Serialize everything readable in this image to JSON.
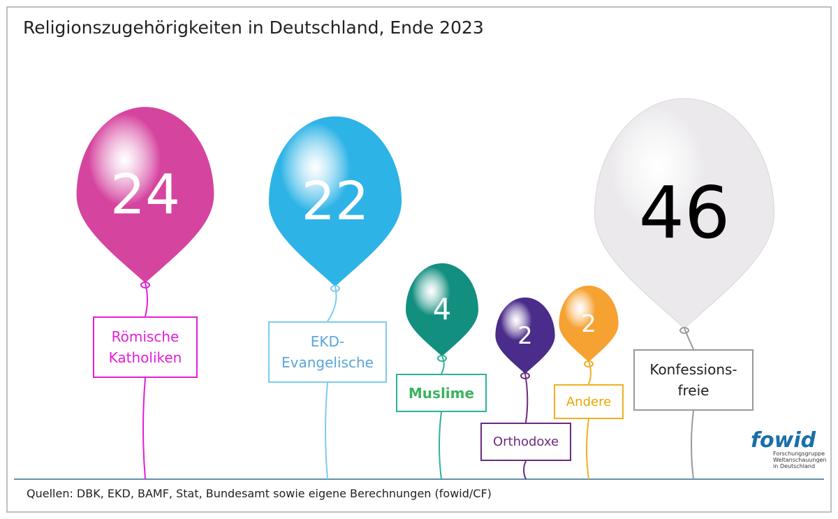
{
  "chart_data": {
    "type": "balloon",
    "title": "Religionszugehörigkeiten in Deutschland, Ende 2023",
    "categories": [
      "Römische\nKatholiken",
      "EKD-\nEvangelische",
      "Muslime",
      "Orthodoxe",
      "Andere",
      "Konfessions-\nfreie"
    ],
    "values": [
      24,
      22,
      4,
      2,
      2,
      46
    ],
    "colors": [
      "#d5449f",
      "#2eb3e6",
      "#138f80",
      "#4a2c8a",
      "#f5a232",
      "#ebe9ec"
    ],
    "value_label_colors": [
      "#ffffff",
      "#ffffff",
      "#ffffff",
      "#ffffff",
      "#ffffff",
      "#000000"
    ],
    "label_colors": [
      "#e21fd8",
      "#5aa6da",
      "#3cb35e",
      "#6a2a80",
      "#e8a800",
      "#222222"
    ],
    "box_colors": [
      "#e21fd8",
      "#7ccbef",
      "#2bb39a",
      "#6a2a80",
      "#f0b020",
      "#999999"
    ],
    "source": "Quellen: DBK, EKD, BAMF, Stat, Bundesamt sowie eigene Berechnungen (fowid/CF)",
    "logo": {
      "name": "fowid",
      "subtitle": "Forschungsgruppe\nWeltanschauungen\nin Deutschland"
    }
  }
}
